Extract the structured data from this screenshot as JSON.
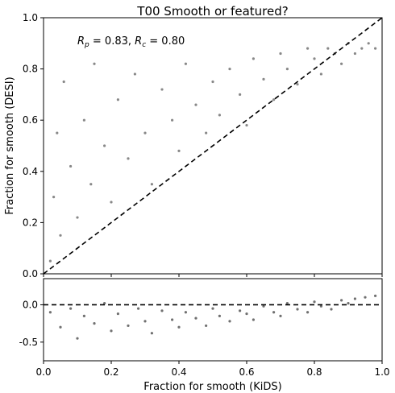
{
  "chart_data": [
    {
      "type": "scatter",
      "title": "T00 Smooth or featured?",
      "xlabel": "",
      "ylabel": "Fraction for smooth (DESI)",
      "xlim": [
        0.0,
        1.0
      ],
      "ylim": [
        0.0,
        1.0
      ],
      "xticks": [
        "",
        "",
        "",
        "",
        "",
        ""
      ],
      "yticks": [
        "0.0",
        "0.2",
        "0.4",
        "0.6",
        "0.8",
        "1.0"
      ],
      "reference_line": {
        "x": [
          0.0,
          1.0
        ],
        "y": [
          0.0,
          1.0
        ],
        "style": "dashed"
      },
      "annotation": {
        "rp": "R",
        "rp_sub": "p",
        "rp_val": " = 0.83, ",
        "rc": "R",
        "rc_sub": "c",
        "rc_val": " = 0.80"
      },
      "point_color": "#555555",
      "series": [
        {
          "name": "",
          "points": [
            [
              0.02,
              0.05
            ],
            [
              0.03,
              0.3
            ],
            [
              0.04,
              0.55
            ],
            [
              0.05,
              0.15
            ],
            [
              0.06,
              0.75
            ],
            [
              0.08,
              0.42
            ],
            [
              0.1,
              0.22
            ],
            [
              0.12,
              0.6
            ],
            [
              0.14,
              0.35
            ],
            [
              0.15,
              0.82
            ],
            [
              0.18,
              0.5
            ],
            [
              0.2,
              0.28
            ],
            [
              0.22,
              0.68
            ],
            [
              0.25,
              0.45
            ],
            [
              0.27,
              0.78
            ],
            [
              0.3,
              0.55
            ],
            [
              0.32,
              0.35
            ],
            [
              0.35,
              0.72
            ],
            [
              0.38,
              0.6
            ],
            [
              0.4,
              0.48
            ],
            [
              0.42,
              0.82
            ],
            [
              0.45,
              0.66
            ],
            [
              0.48,
              0.55
            ],
            [
              0.5,
              0.75
            ],
            [
              0.52,
              0.62
            ],
            [
              0.55,
              0.8
            ],
            [
              0.58,
              0.7
            ],
            [
              0.6,
              0.58
            ],
            [
              0.62,
              0.84
            ],
            [
              0.65,
              0.76
            ],
            [
              0.68,
              0.68
            ],
            [
              0.7,
              0.86
            ],
            [
              0.72,
              0.8
            ],
            [
              0.75,
              0.74
            ],
            [
              0.78,
              0.88
            ],
            [
              0.8,
              0.84
            ],
            [
              0.82,
              0.78
            ],
            [
              0.84,
              0.88
            ],
            [
              0.86,
              0.86
            ],
            [
              0.88,
              0.82
            ],
            [
              0.9,
              0.9
            ],
            [
              0.92,
              0.86
            ],
            [
              0.94,
              0.88
            ],
            [
              0.96,
              0.9
            ],
            [
              0.98,
              0.88
            ]
          ]
        }
      ]
    },
    {
      "type": "scatter",
      "title": "",
      "xlabel": "Fraction for smooth (KiDS)",
      "ylabel": "",
      "xlim": [
        0.0,
        1.0
      ],
      "ylim": [
        -0.75,
        0.35
      ],
      "xticks": [
        "0.0",
        "0.2",
        "0.4",
        "0.6",
        "0.8",
        "1.0"
      ],
      "yticks": [
        "-0.5",
        "0.0"
      ],
      "reference_line": {
        "x": [
          0.0,
          1.0
        ],
        "y": [
          0.0,
          0.0
        ],
        "style": "dashed"
      },
      "point_color": "#333333",
      "series": [
        {
          "name": "",
          "points": [
            [
              0.02,
              -0.1
            ],
            [
              0.05,
              -0.3
            ],
            [
              0.08,
              -0.05
            ],
            [
              0.1,
              -0.45
            ],
            [
              0.12,
              -0.15
            ],
            [
              0.15,
              -0.25
            ],
            [
              0.18,
              0.02
            ],
            [
              0.2,
              -0.35
            ],
            [
              0.22,
              -0.12
            ],
            [
              0.25,
              -0.28
            ],
            [
              0.28,
              -0.05
            ],
            [
              0.3,
              -0.22
            ],
            [
              0.32,
              -0.38
            ],
            [
              0.35,
              -0.08
            ],
            [
              0.38,
              -0.2
            ],
            [
              0.4,
              -0.3
            ],
            [
              0.42,
              -0.1
            ],
            [
              0.45,
              -0.18
            ],
            [
              0.48,
              -0.28
            ],
            [
              0.5,
              -0.05
            ],
            [
              0.52,
              -0.15
            ],
            [
              0.55,
              -0.22
            ],
            [
              0.58,
              -0.08
            ],
            [
              0.6,
              -0.12
            ],
            [
              0.62,
              -0.2
            ],
            [
              0.65,
              -0.02
            ],
            [
              0.68,
              -0.1
            ],
            [
              0.7,
              -0.15
            ],
            [
              0.72,
              0.02
            ],
            [
              0.75,
              -0.06
            ],
            [
              0.78,
              -0.1
            ],
            [
              0.8,
              0.04
            ],
            [
              0.82,
              -0.02
            ],
            [
              0.85,
              -0.06
            ],
            [
              0.88,
              0.06
            ],
            [
              0.9,
              0.02
            ],
            [
              0.92,
              0.08
            ],
            [
              0.95,
              0.1
            ],
            [
              0.98,
              0.12
            ]
          ]
        }
      ]
    }
  ]
}
